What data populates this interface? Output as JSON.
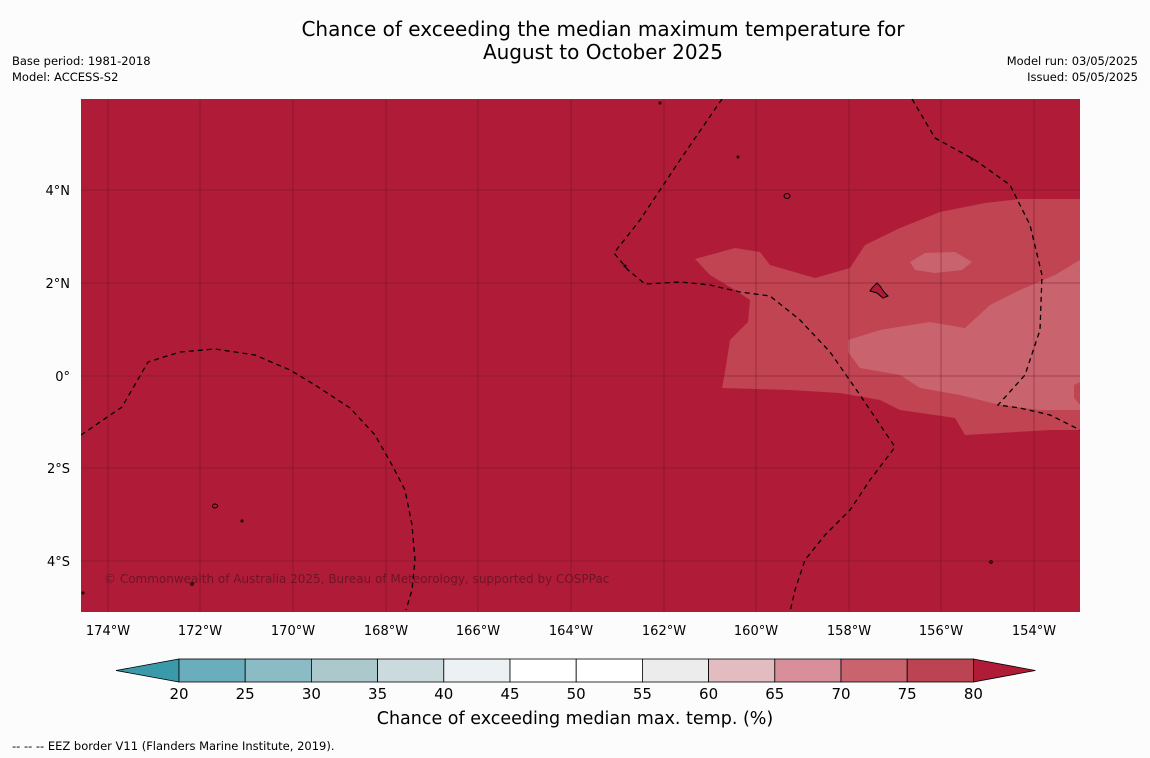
{
  "header": {
    "title_line1": "Chance of exceeding the median maximum temperature for",
    "title_line2": "August to October 2025",
    "base_period": "Base period: 1981-2018",
    "model": "Model: ACCESS-S2",
    "model_run": "Model run: 03/05/2025",
    "issued": "Issued: 05/05/2025"
  },
  "map": {
    "lon_labels": [
      "174°W",
      "172°W",
      "170°W",
      "168°W",
      "166°W",
      "164°W",
      "162°W",
      "160°W",
      "158°W",
      "156°W",
      "154°W"
    ],
    "lat_labels": [
      "4°N",
      "2°N",
      "0°",
      "2°S",
      "4°S"
    ],
    "base_color": "#b01c38",
    "credit": "© Commonwealth of Australia 2025, Bureau of Meteorology, supported by COSPPac"
  },
  "colorbar": {
    "tick_labels": [
      "20",
      "25",
      "30",
      "35",
      "40",
      "45",
      "50",
      "55",
      "60",
      "65",
      "70",
      "75",
      "80"
    ],
    "colors": [
      "#3a9aaa",
      "#6aaebd",
      "#8bbcc6",
      "#abc8cd",
      "#cbdadd",
      "#ecf2f3",
      "#ffffff",
      "#ffffff",
      "#ececec",
      "#e3bcc1",
      "#d88f99",
      "#c9646f",
      "#bc4452",
      "#b01c38"
    ],
    "title": "Chance of exceeding median max. temp. (%)"
  },
  "footnote": "-- -- -- EEZ border V11 (Flanders Marine Institute, 2019)."
}
